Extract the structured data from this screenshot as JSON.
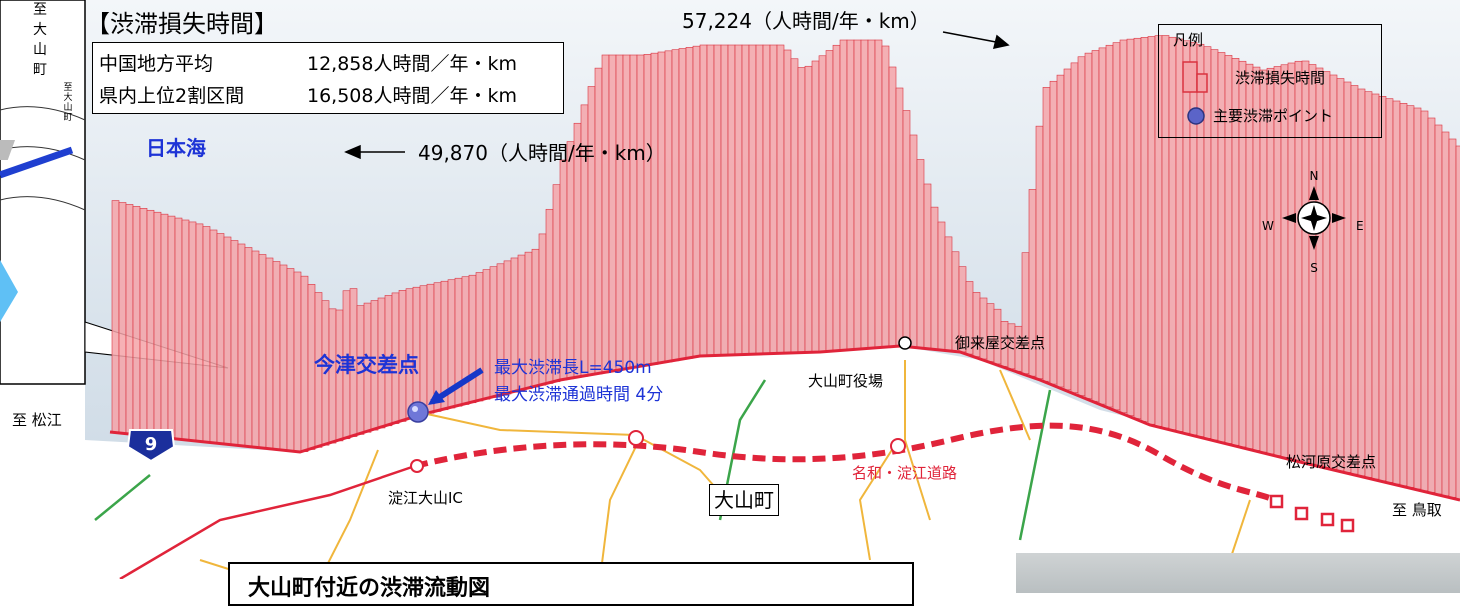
{
  "title": "【渋滞損失時間】",
  "stats": [
    {
      "label": "中国地方平均",
      "value": "12,858人時間／年・km"
    },
    {
      "label": "県内上位2割区間",
      "value": "16,508人時間／年・km"
    }
  ],
  "sea_label": "日本海",
  "peaks": {
    "peak1": "49,870（人時間/年・km）",
    "peak2": "57,224（人時間/年・km）"
  },
  "legend": {
    "title": "凡例",
    "items": [
      {
        "label": "渋滞損失時間",
        "color": "#f4a3a8"
      },
      {
        "label": "主要渋滞ポイント",
        "color": "#5b64c8"
      }
    ]
  },
  "compass": {
    "n": "N",
    "s": "S",
    "e": "E",
    "w": "W"
  },
  "inset": {
    "to_daisen": "至 大山町",
    "to_daisen_small": "至 大山町",
    "to_matsue": "至 松江"
  },
  "route_badge": "9",
  "intersections": {
    "imazu": "今津交差点",
    "mikuriya": "御来屋交差点",
    "matsukawara": "松河原交差点"
  },
  "congestion": {
    "length": "最大渋滞長L=450m",
    "time": "最大渋滞通過時間 4分"
  },
  "places": {
    "town_hall": "大山町役場",
    "town": "大山町",
    "ic": "淀江大山IC",
    "expressway": "名和・淀江道路",
    "to_tottori": "至 鳥取"
  },
  "bottom_panel": {
    "title": "大山町付近の渋滞流動図"
  }
}
